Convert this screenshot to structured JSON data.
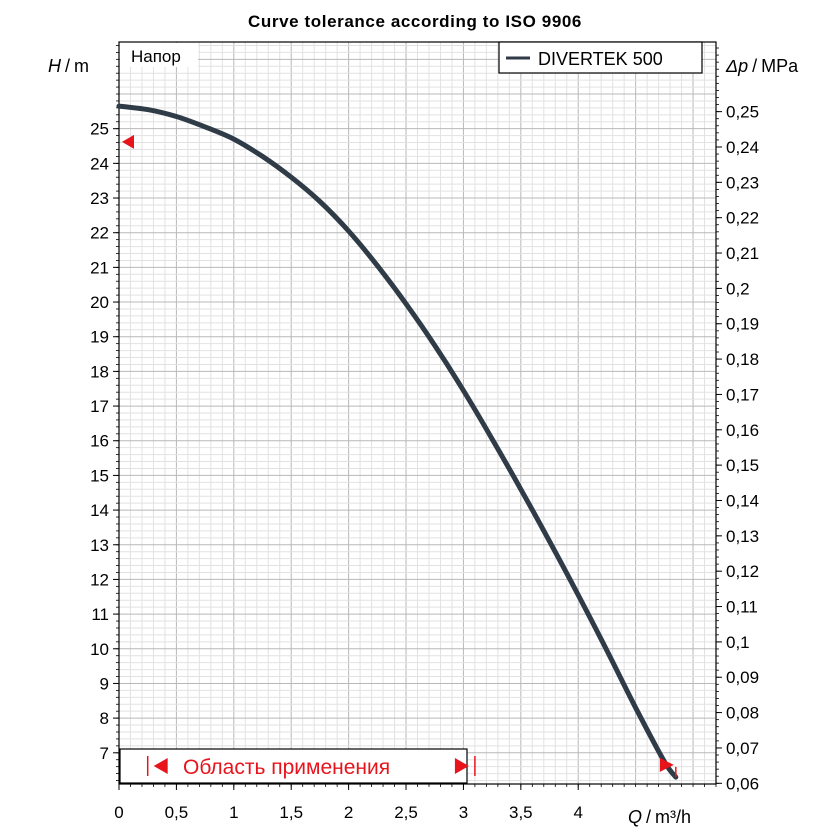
{
  "chart_data": {
    "type": "line",
    "title": "Curve tolerance according to ISO 9906",
    "ylabel_var": "H",
    "ylabel_unit": "m",
    "y2label_var": "Δp",
    "y2label_unit": "MPa",
    "xlabel_var": "Q",
    "xlabel_unit": "m³/h",
    "panel_label": "Напор",
    "xlim": [
      0,
      5.2
    ],
    "ylim": [
      6.1,
      27.5
    ],
    "y2lim": [
      0.0598,
      0.2697
    ],
    "x_ticks": [
      0,
      0.5,
      1,
      1.5,
      2,
      2.5,
      3,
      3.5,
      4
    ],
    "x_tick_labels": [
      "0",
      "0,5",
      "1",
      "1,5",
      "2",
      "2,5",
      "3",
      "3,5",
      "4"
    ],
    "y_ticks": [
      7,
      8,
      9,
      10,
      11,
      12,
      13,
      14,
      15,
      16,
      17,
      18,
      19,
      20,
      21,
      22,
      23,
      24,
      25
    ],
    "y_tick_labels": [
      "7",
      "8",
      "9",
      "10",
      "11",
      "12",
      "13",
      "14",
      "15",
      "16",
      "17",
      "18",
      "19",
      "20",
      "21",
      "22",
      "23",
      "24",
      "25"
    ],
    "y2_ticks": [
      0.06,
      0.07,
      0.08,
      0.09,
      0.1,
      0.11,
      0.12,
      0.13,
      0.14,
      0.15,
      0.16,
      0.17,
      0.18,
      0.19,
      0.2,
      0.21,
      0.22,
      0.23,
      0.24,
      0.25
    ],
    "y2_tick_labels": [
      "0,06",
      "0,07",
      "0,08",
      "0,09",
      "0,1",
      "0,11",
      "0,12",
      "0,13",
      "0,14",
      "0,15",
      "0,16",
      "0,17",
      "0,18",
      "0,19",
      "0,2",
      "0,21",
      "0,22",
      "0,23",
      "0,24",
      "0,25"
    ],
    "grid": true,
    "legend_position": "top-right",
    "series": [
      {
        "name": "DIVERTEK 500",
        "color": "#2f3b46",
        "x": [
          0,
          0.25,
          0.5,
          0.75,
          1.0,
          1.25,
          1.5,
          1.75,
          2.0,
          2.25,
          2.5,
          2.75,
          3.0,
          3.25,
          3.5,
          3.75,
          4.0,
          4.25,
          4.5,
          4.75,
          4.85
        ],
        "y": [
          25.65,
          25.55,
          25.35,
          25.05,
          24.7,
          24.2,
          23.6,
          22.9,
          22.05,
          21.05,
          19.95,
          18.75,
          17.45,
          16.05,
          14.6,
          13.1,
          11.55,
          9.95,
          8.3,
          6.75,
          6.3
        ]
      }
    ],
    "range_label": "Область применения",
    "range_x": [
      0.25,
      3.1
    ],
    "marker_y": 24.62,
    "marker_x": 4.85,
    "marker_color": "#e8141c"
  }
}
